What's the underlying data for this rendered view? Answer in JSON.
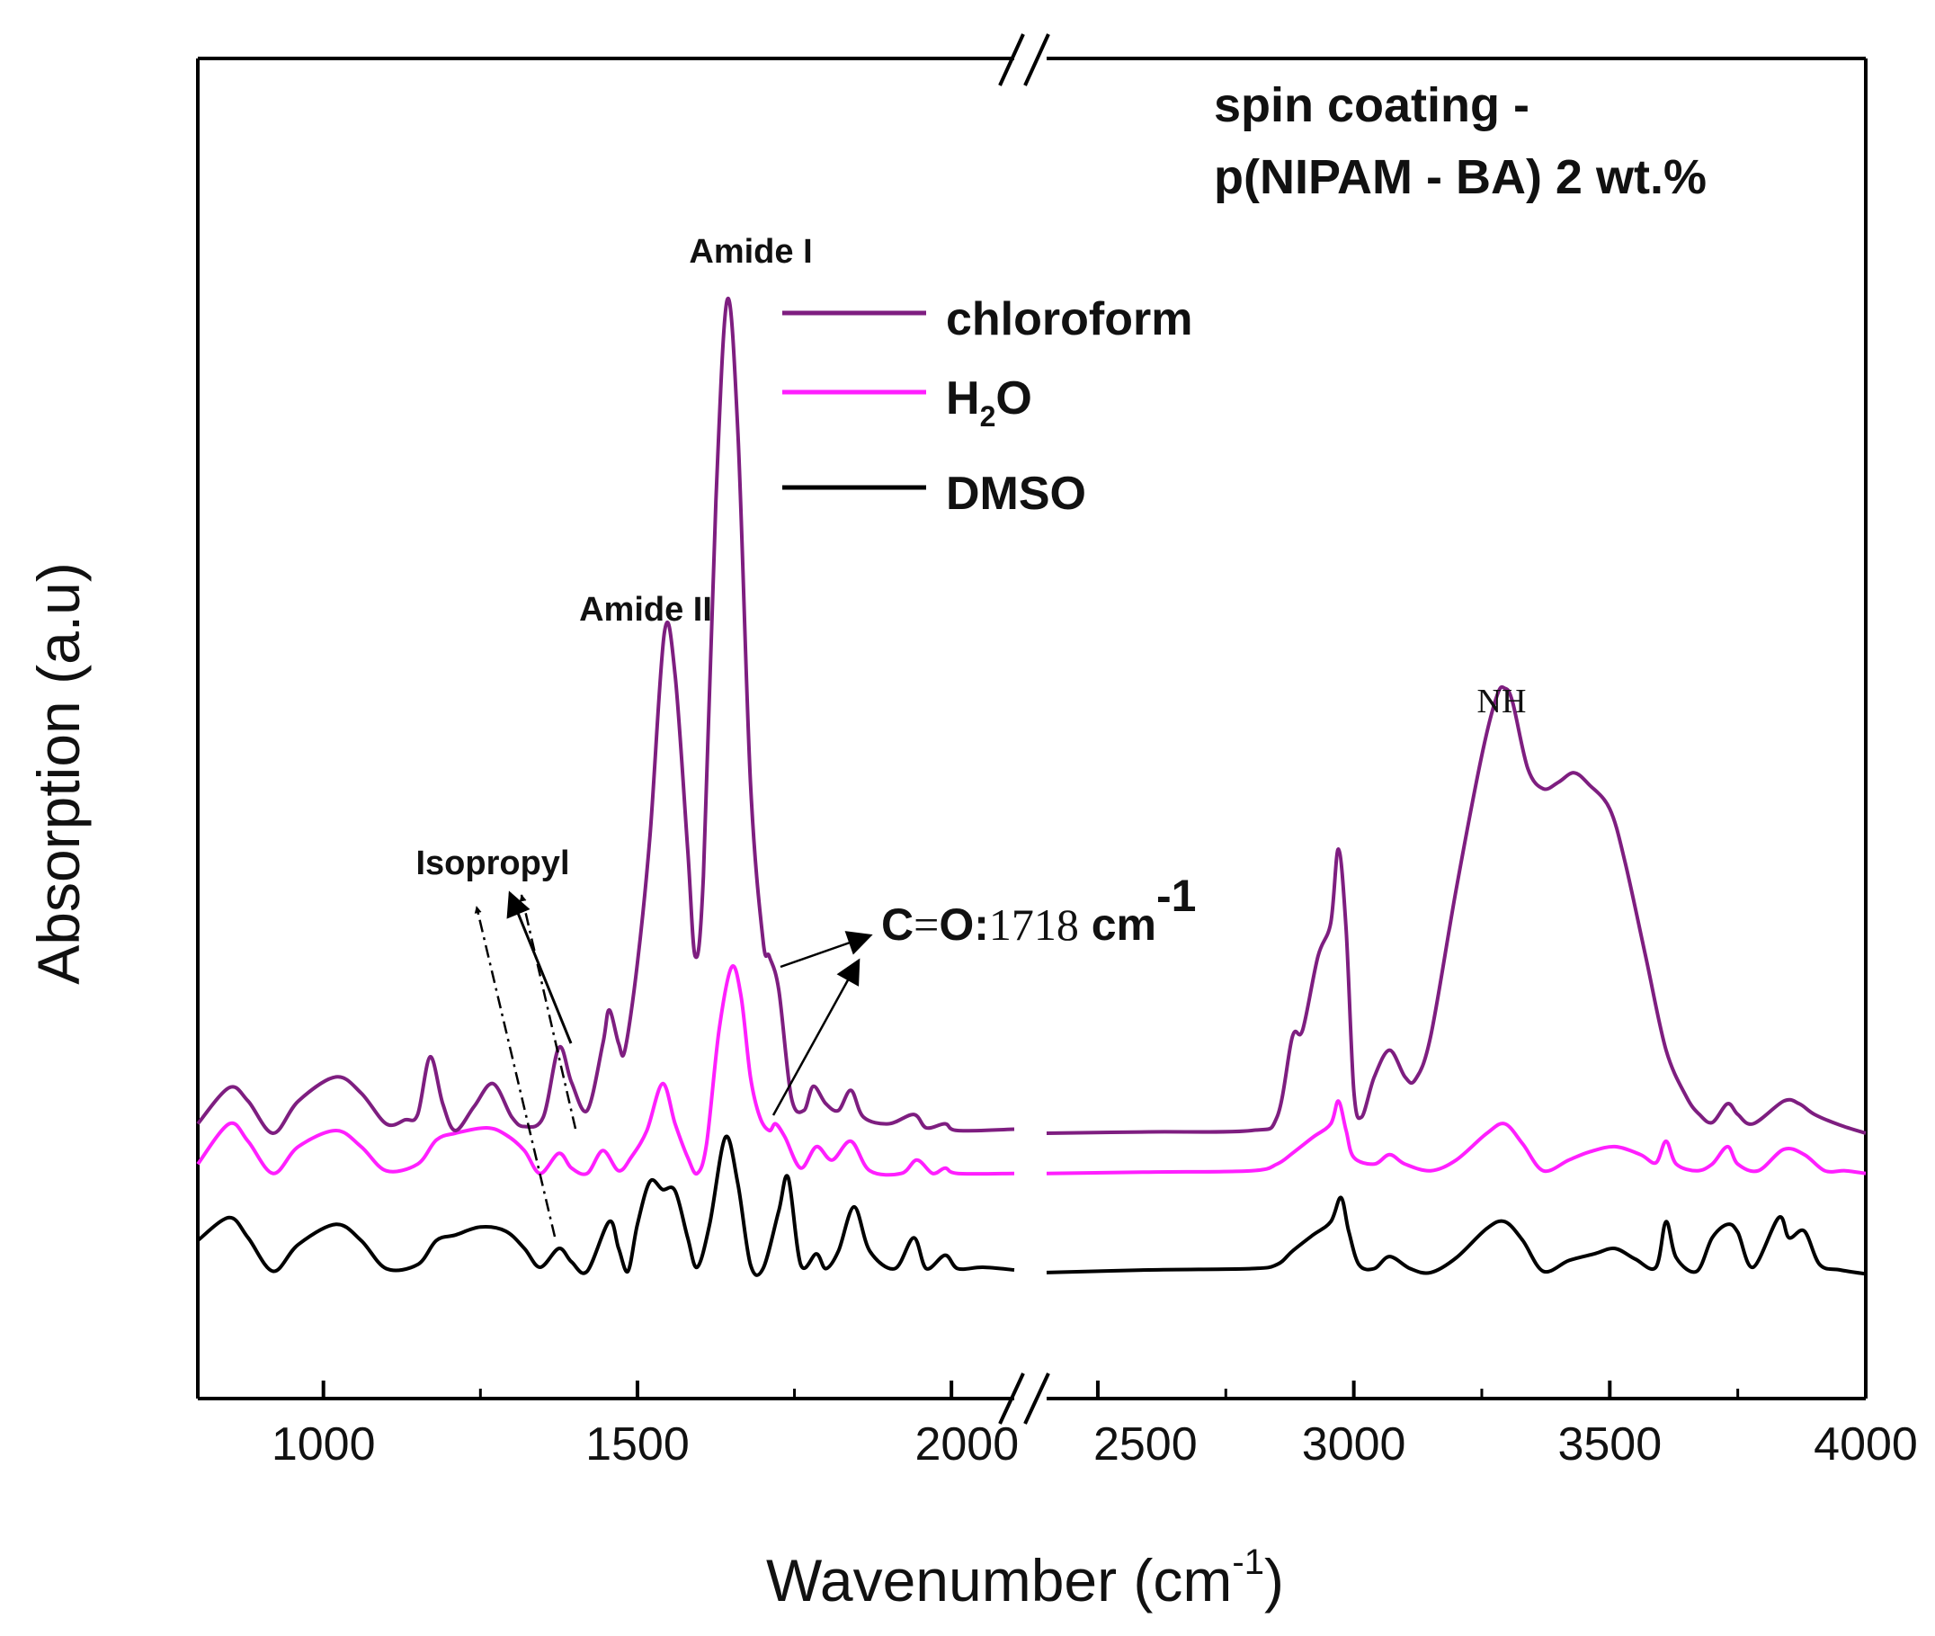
{
  "chart_data": {
    "type": "line",
    "title_lines": [
      "spin coating -",
      "p(NIPAM - BA) 2 wt.%"
    ],
    "xlabel": "Wavenumber (cm",
    "xlabel_sup": "-1",
    "xlabel_end": ")",
    "ylabel": "Absorption (a.u)",
    "broken_x_axis": true,
    "x_segments": [
      {
        "range": [
          800,
          2100
        ],
        "ticks": [
          1000,
          1500,
          2000
        ],
        "tick_labels": [
          "1000",
          "1500",
          "2000"
        ],
        "minor_ticks": [
          1250,
          1750
        ]
      },
      {
        "range": [
          2400,
          4000
        ],
        "ticks": [
          2500,
          3000,
          3500,
          4000
        ],
        "tick_labels": [
          "2500",
          "3000",
          "3500",
          "4000"
        ],
        "minor_ticks": [
          2750,
          3250,
          3750
        ]
      }
    ],
    "ylim": [
      0,
      1
    ],
    "legend_position": "top-right",
    "series": [
      {
        "name": "chloroform",
        "color": "#7e1e80",
        "points": [
          [
            800,
            0.205
          ],
          [
            850,
            0.232
          ],
          [
            880,
            0.222
          ],
          [
            920,
            0.198
          ],
          [
            960,
            0.222
          ],
          [
            1020,
            0.24
          ],
          [
            1060,
            0.228
          ],
          [
            1100,
            0.205
          ],
          [
            1130,
            0.208
          ],
          [
            1150,
            0.212
          ],
          [
            1170,
            0.255
          ],
          [
            1190,
            0.22
          ],
          [
            1210,
            0.2
          ],
          [
            1240,
            0.218
          ],
          [
            1270,
            0.235
          ],
          [
            1300,
            0.21
          ],
          [
            1320,
            0.203
          ],
          [
            1350,
            0.21
          ],
          [
            1375,
            0.262
          ],
          [
            1395,
            0.236
          ],
          [
            1420,
            0.215
          ],
          [
            1445,
            0.265
          ],
          [
            1455,
            0.29
          ],
          [
            1470,
            0.265
          ],
          [
            1480,
            0.26
          ],
          [
            1500,
            0.325
          ],
          [
            1520,
            0.42
          ],
          [
            1543,
            0.572
          ],
          [
            1560,
            0.54
          ],
          [
            1580,
            0.41
          ],
          [
            1592,
            0.33
          ],
          [
            1605,
            0.39
          ],
          [
            1625,
            0.67
          ],
          [
            1643,
            0.82
          ],
          [
            1660,
            0.72
          ],
          [
            1680,
            0.46
          ],
          [
            1700,
            0.342
          ],
          [
            1710,
            0.33
          ],
          [
            1725,
            0.305
          ],
          [
            1745,
            0.225
          ],
          [
            1765,
            0.215
          ],
          [
            1780,
            0.233
          ],
          [
            1800,
            0.22
          ],
          [
            1820,
            0.215
          ],
          [
            1840,
            0.23
          ],
          [
            1860,
            0.21
          ],
          [
            1900,
            0.205
          ],
          [
            1940,
            0.212
          ],
          [
            1960,
            0.202
          ],
          [
            1990,
            0.205
          ],
          [
            2010,
            0.2
          ],
          [
            2100,
            0.201
          ],
          [
            2400,
            0.198
          ],
          [
            2600,
            0.199
          ],
          [
            2800,
            0.2
          ],
          [
            2850,
            0.21
          ],
          [
            2880,
            0.27
          ],
          [
            2900,
            0.275
          ],
          [
            2930,
            0.33
          ],
          [
            2955,
            0.355
          ],
          [
            2970,
            0.41
          ],
          [
            2985,
            0.35
          ],
          [
            3000,
            0.23
          ],
          [
            3015,
            0.21
          ],
          [
            3040,
            0.24
          ],
          [
            3070,
            0.26
          ],
          [
            3100,
            0.24
          ],
          [
            3120,
            0.238
          ],
          [
            3150,
            0.27
          ],
          [
            3200,
            0.38
          ],
          [
            3250,
            0.48
          ],
          [
            3280,
            0.525
          ],
          [
            3295,
            0.53
          ],
          [
            3310,
            0.52
          ],
          [
            3340,
            0.47
          ],
          [
            3370,
            0.455
          ],
          [
            3400,
            0.46
          ],
          [
            3430,
            0.467
          ],
          [
            3460,
            0.458
          ],
          [
            3500,
            0.44
          ],
          [
            3530,
            0.4
          ],
          [
            3570,
            0.33
          ],
          [
            3610,
            0.26
          ],
          [
            3650,
            0.225
          ],
          [
            3675,
            0.212
          ],
          [
            3700,
            0.206
          ],
          [
            3730,
            0.22
          ],
          [
            3750,
            0.212
          ],
          [
            3780,
            0.205
          ],
          [
            3840,
            0.222
          ],
          [
            3870,
            0.22
          ],
          [
            3900,
            0.212
          ],
          [
            3950,
            0.204
          ],
          [
            4000,
            0.198
          ]
        ]
      },
      {
        "name": "H₂O",
        "legend_main": "H",
        "legend_sub": "2",
        "legend_end": "O",
        "color": "#ff1fff",
        "points": [
          [
            800,
            0.175
          ],
          [
            850,
            0.205
          ],
          [
            880,
            0.192
          ],
          [
            920,
            0.168
          ],
          [
            960,
            0.188
          ],
          [
            1020,
            0.2
          ],
          [
            1060,
            0.188
          ],
          [
            1100,
            0.17
          ],
          [
            1150,
            0.175
          ],
          [
            1180,
            0.193
          ],
          [
            1210,
            0.198
          ],
          [
            1260,
            0.202
          ],
          [
            1290,
            0.197
          ],
          [
            1320,
            0.185
          ],
          [
            1345,
            0.168
          ],
          [
            1375,
            0.183
          ],
          [
            1395,
            0.172
          ],
          [
            1420,
            0.168
          ],
          [
            1445,
            0.185
          ],
          [
            1470,
            0.17
          ],
          [
            1490,
            0.18
          ],
          [
            1515,
            0.2
          ],
          [
            1540,
            0.235
          ],
          [
            1560,
            0.205
          ],
          [
            1580,
            0.18
          ],
          [
            1595,
            0.168
          ],
          [
            1610,
            0.19
          ],
          [
            1630,
            0.275
          ],
          [
            1650,
            0.322
          ],
          [
            1665,
            0.3
          ],
          [
            1680,
            0.24
          ],
          [
            1695,
            0.21
          ],
          [
            1710,
            0.2
          ],
          [
            1720,
            0.205
          ],
          [
            1735,
            0.195
          ],
          [
            1760,
            0.172
          ],
          [
            1785,
            0.188
          ],
          [
            1810,
            0.178
          ],
          [
            1840,
            0.192
          ],
          [
            1870,
            0.17
          ],
          [
            1920,
            0.168
          ],
          [
            1945,
            0.178
          ],
          [
            1970,
            0.168
          ],
          [
            1990,
            0.172
          ],
          [
            2010,
            0.168
          ],
          [
            2100,
            0.168
          ],
          [
            2400,
            0.168
          ],
          [
            2600,
            0.169
          ],
          [
            2800,
            0.17
          ],
          [
            2850,
            0.175
          ],
          [
            2880,
            0.183
          ],
          [
            2920,
            0.195
          ],
          [
            2955,
            0.205
          ],
          [
            2970,
            0.222
          ],
          [
            2985,
            0.2
          ],
          [
            3000,
            0.18
          ],
          [
            3040,
            0.175
          ],
          [
            3070,
            0.182
          ],
          [
            3100,
            0.175
          ],
          [
            3150,
            0.17
          ],
          [
            3200,
            0.178
          ],
          [
            3260,
            0.198
          ],
          [
            3295,
            0.205
          ],
          [
            3330,
            0.19
          ],
          [
            3370,
            0.17
          ],
          [
            3420,
            0.178
          ],
          [
            3460,
            0.184
          ],
          [
            3510,
            0.188
          ],
          [
            3560,
            0.182
          ],
          [
            3590,
            0.176
          ],
          [
            3610,
            0.192
          ],
          [
            3630,
            0.175
          ],
          [
            3670,
            0.17
          ],
          [
            3700,
            0.175
          ],
          [
            3730,
            0.188
          ],
          [
            3750,
            0.175
          ],
          [
            3790,
            0.17
          ],
          [
            3840,
            0.186
          ],
          [
            3880,
            0.182
          ],
          [
            3920,
            0.17
          ],
          [
            3960,
            0.17
          ],
          [
            4000,
            0.168
          ]
        ]
      },
      {
        "name": "DMSO",
        "color": "#000000",
        "points": [
          [
            800,
            0.118
          ],
          [
            850,
            0.135
          ],
          [
            880,
            0.12
          ],
          [
            920,
            0.095
          ],
          [
            960,
            0.115
          ],
          [
            1020,
            0.13
          ],
          [
            1060,
            0.118
          ],
          [
            1100,
            0.097
          ],
          [
            1150,
            0.1
          ],
          [
            1180,
            0.118
          ],
          [
            1210,
            0.122
          ],
          [
            1250,
            0.128
          ],
          [
            1290,
            0.125
          ],
          [
            1320,
            0.112
          ],
          [
            1345,
            0.098
          ],
          [
            1375,
            0.112
          ],
          [
            1395,
            0.102
          ],
          [
            1420,
            0.095
          ],
          [
            1455,
            0.132
          ],
          [
            1470,
            0.112
          ],
          [
            1485,
            0.095
          ],
          [
            1500,
            0.13
          ],
          [
            1520,
            0.162
          ],
          [
            1540,
            0.156
          ],
          [
            1560,
            0.155
          ],
          [
            1580,
            0.12
          ],
          [
            1595,
            0.098
          ],
          [
            1615,
            0.13
          ],
          [
            1640,
            0.195
          ],
          [
            1660,
            0.16
          ],
          [
            1680,
            0.1
          ],
          [
            1700,
            0.097
          ],
          [
            1725,
            0.14
          ],
          [
            1740,
            0.165
          ],
          [
            1760,
            0.1
          ],
          [
            1785,
            0.108
          ],
          [
            1800,
            0.097
          ],
          [
            1820,
            0.11
          ],
          [
            1845,
            0.143
          ],
          [
            1870,
            0.11
          ],
          [
            1910,
            0.097
          ],
          [
            1940,
            0.12
          ],
          [
            1960,
            0.097
          ],
          [
            1990,
            0.107
          ],
          [
            2010,
            0.097
          ],
          [
            2050,
            0.098
          ],
          [
            2100,
            0.096
          ],
          [
            2400,
            0.094
          ],
          [
            2600,
            0.096
          ],
          [
            2800,
            0.097
          ],
          [
            2850,
            0.1
          ],
          [
            2880,
            0.11
          ],
          [
            2920,
            0.122
          ],
          [
            2955,
            0.132
          ],
          [
            2975,
            0.15
          ],
          [
            2990,
            0.125
          ],
          [
            3010,
            0.1
          ],
          [
            3040,
            0.097
          ],
          [
            3070,
            0.106
          ],
          [
            3110,
            0.097
          ],
          [
            3150,
            0.094
          ],
          [
            3200,
            0.105
          ],
          [
            3260,
            0.127
          ],
          [
            3295,
            0.132
          ],
          [
            3330,
            0.118
          ],
          [
            3370,
            0.095
          ],
          [
            3420,
            0.103
          ],
          [
            3470,
            0.108
          ],
          [
            3510,
            0.112
          ],
          [
            3550,
            0.104
          ],
          [
            3590,
            0.098
          ],
          [
            3610,
            0.132
          ],
          [
            3630,
            0.105
          ],
          [
            3670,
            0.095
          ],
          [
            3700,
            0.12
          ],
          [
            3730,
            0.13
          ],
          [
            3750,
            0.124
          ],
          [
            3780,
            0.098
          ],
          [
            3830,
            0.135
          ],
          [
            3850,
            0.12
          ],
          [
            3880,
            0.125
          ],
          [
            3910,
            0.1
          ],
          [
            3950,
            0.096
          ],
          [
            4000,
            0.093
          ]
        ]
      }
    ],
    "annotations": {
      "amide_i": "Amide I",
      "amide_ii": "Amide II",
      "isopropyl": "Isopropyl",
      "nh": "NH",
      "co_prefix": "C",
      "co_eq": "=",
      "co_o": "O:",
      "co_value": "1718",
      "co_unit": " cm",
      "co_sup": "-1"
    }
  }
}
